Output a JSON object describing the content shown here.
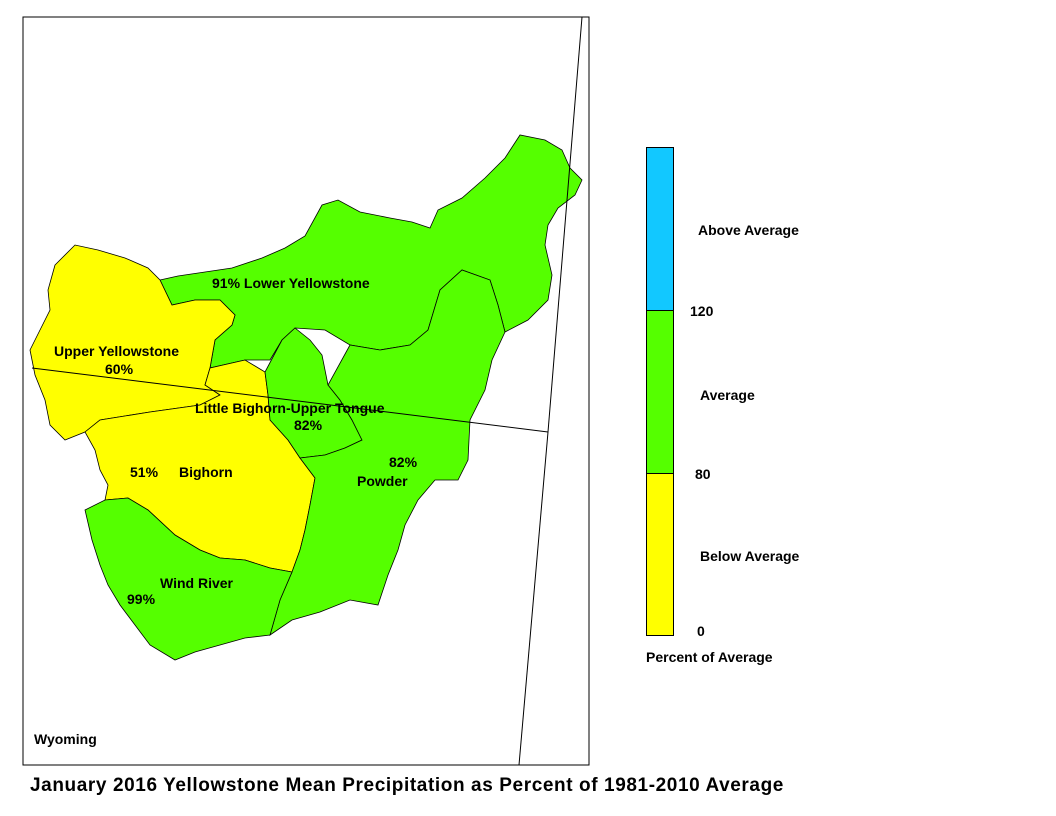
{
  "title": "January 2016 Yellowstone Mean Precipitation as Percent of 1981-2010 Average",
  "state_label": "Wyoming",
  "colors": {
    "above": "#12c8ff",
    "average": "#55ff00",
    "below": "#ffff00",
    "outline": "#000000"
  },
  "regions": [
    {
      "name": "Lower Yellowstone",
      "percent_label": "91%",
      "category": "average"
    },
    {
      "name": "Upper Yellowstone",
      "percent_label": "60%",
      "category": "below"
    },
    {
      "name": "Little Bighorn-Upper Tongue",
      "percent_label": "82%",
      "category": "average"
    },
    {
      "name": "Bighorn",
      "percent_label": "51%",
      "category": "below"
    },
    {
      "name": "Powder",
      "percent_label": "82%",
      "category": "average"
    },
    {
      "name": "Wind River",
      "percent_label": "99%",
      "category": "average"
    }
  ],
  "legend": {
    "classes": [
      {
        "label": "Above Average",
        "color": "#12c8ff"
      },
      {
        "label": "Average",
        "color": "#55ff00"
      },
      {
        "label": "Below Average",
        "color": "#ffff00"
      }
    ],
    "breaks": [
      "120",
      "80",
      "0"
    ],
    "caption": "Percent of Average"
  }
}
